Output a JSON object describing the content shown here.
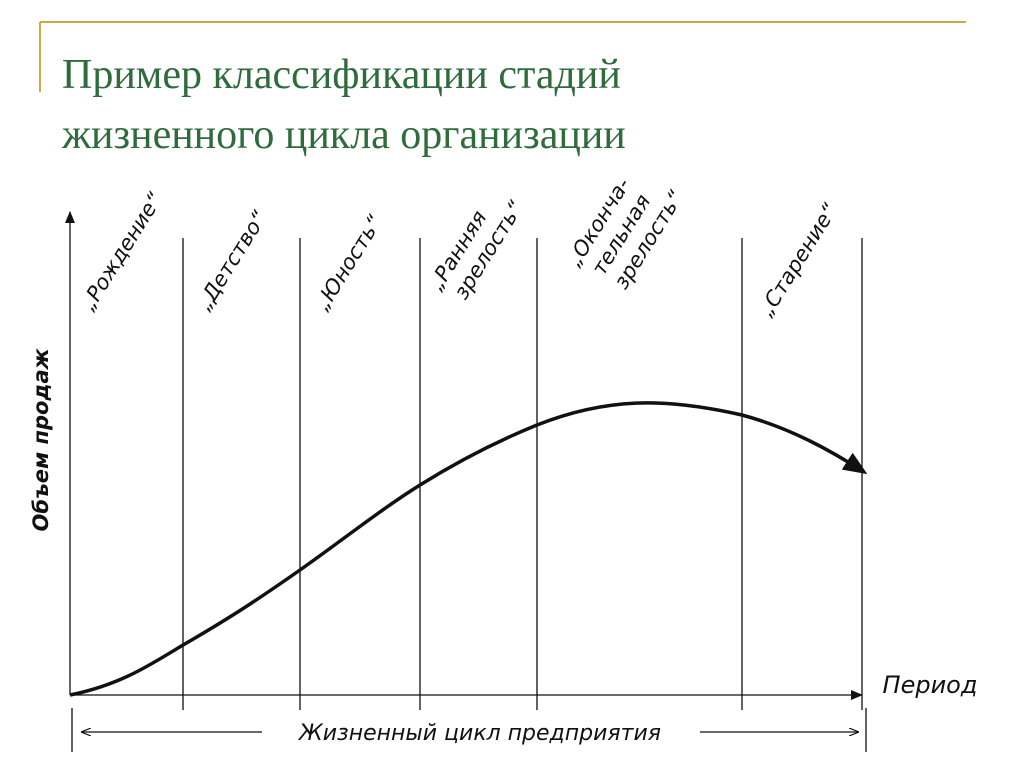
{
  "header": {
    "title_lines": [
      "Пример классификации стадий",
      "жизненного цикла организации"
    ]
  },
  "diagram": {
    "y_axis_label": "Объем продаж",
    "x_axis_label": "Период",
    "span_label": "Жизненный цикл предприятия",
    "stages": [
      {
        "lines": [
          "„Рождение“"
        ]
      },
      {
        "lines": [
          "„Детство“"
        ]
      },
      {
        "lines": [
          "„Юность“"
        ]
      },
      {
        "lines": [
          "„Ранняя",
          "зрелость“"
        ]
      },
      {
        "lines": [
          "„Оконча-",
          "тельная",
          "зрелость“"
        ]
      },
      {
        "lines": [
          "„Старение“"
        ]
      }
    ]
  }
}
